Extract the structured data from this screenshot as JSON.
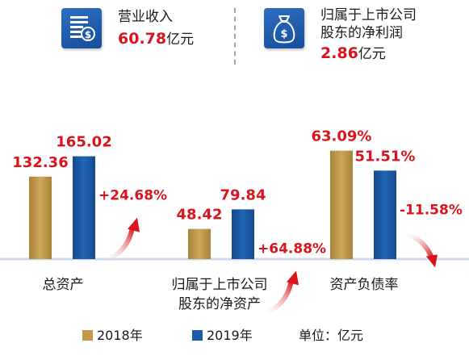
{
  "kpis": [
    {
      "label": "营业收入",
      "value": "60.78",
      "unit": "亿元",
      "icon": "document-dollar-icon"
    },
    {
      "label_line1": "归属于上市公司",
      "label_line2": "股东的净利润",
      "value": "2.86",
      "unit": "亿元",
      "icon": "money-bag-icon"
    }
  ],
  "chart_data": {
    "type": "bar",
    "categories": [
      "总资产",
      "归属于上市公司股东的净资产",
      "资产负债率"
    ],
    "category_labels": [
      [
        "总资产"
      ],
      [
        "归属于上市公司",
        "股东的净资产"
      ],
      [
        "资产负债率"
      ]
    ],
    "series": [
      {
        "name": "2018年",
        "values": [
          132.36,
          48.42,
          63.09
        ],
        "labels": [
          "132.36",
          "48.42",
          "63.09%"
        ],
        "color": "#c19a49"
      },
      {
        "name": "2019年",
        "values": [
          165.02,
          79.84,
          51.51
        ],
        "labels": [
          "165.02",
          "79.84",
          "51.51%"
        ],
        "color": "#1b5aa6"
      }
    ],
    "changes": [
      {
        "label": "+24.68%",
        "direction": "up"
      },
      {
        "label": "+64.88%",
        "direction": "up"
      },
      {
        "label": "-11.58%",
        "direction": "down"
      }
    ],
    "unit_label": "单位：亿元",
    "grid": false,
    "legend": "bottom"
  },
  "colors": {
    "accent_red": "#d8151c",
    "bar_2018": "#c19a49",
    "bar_2019": "#1b5aa6"
  }
}
